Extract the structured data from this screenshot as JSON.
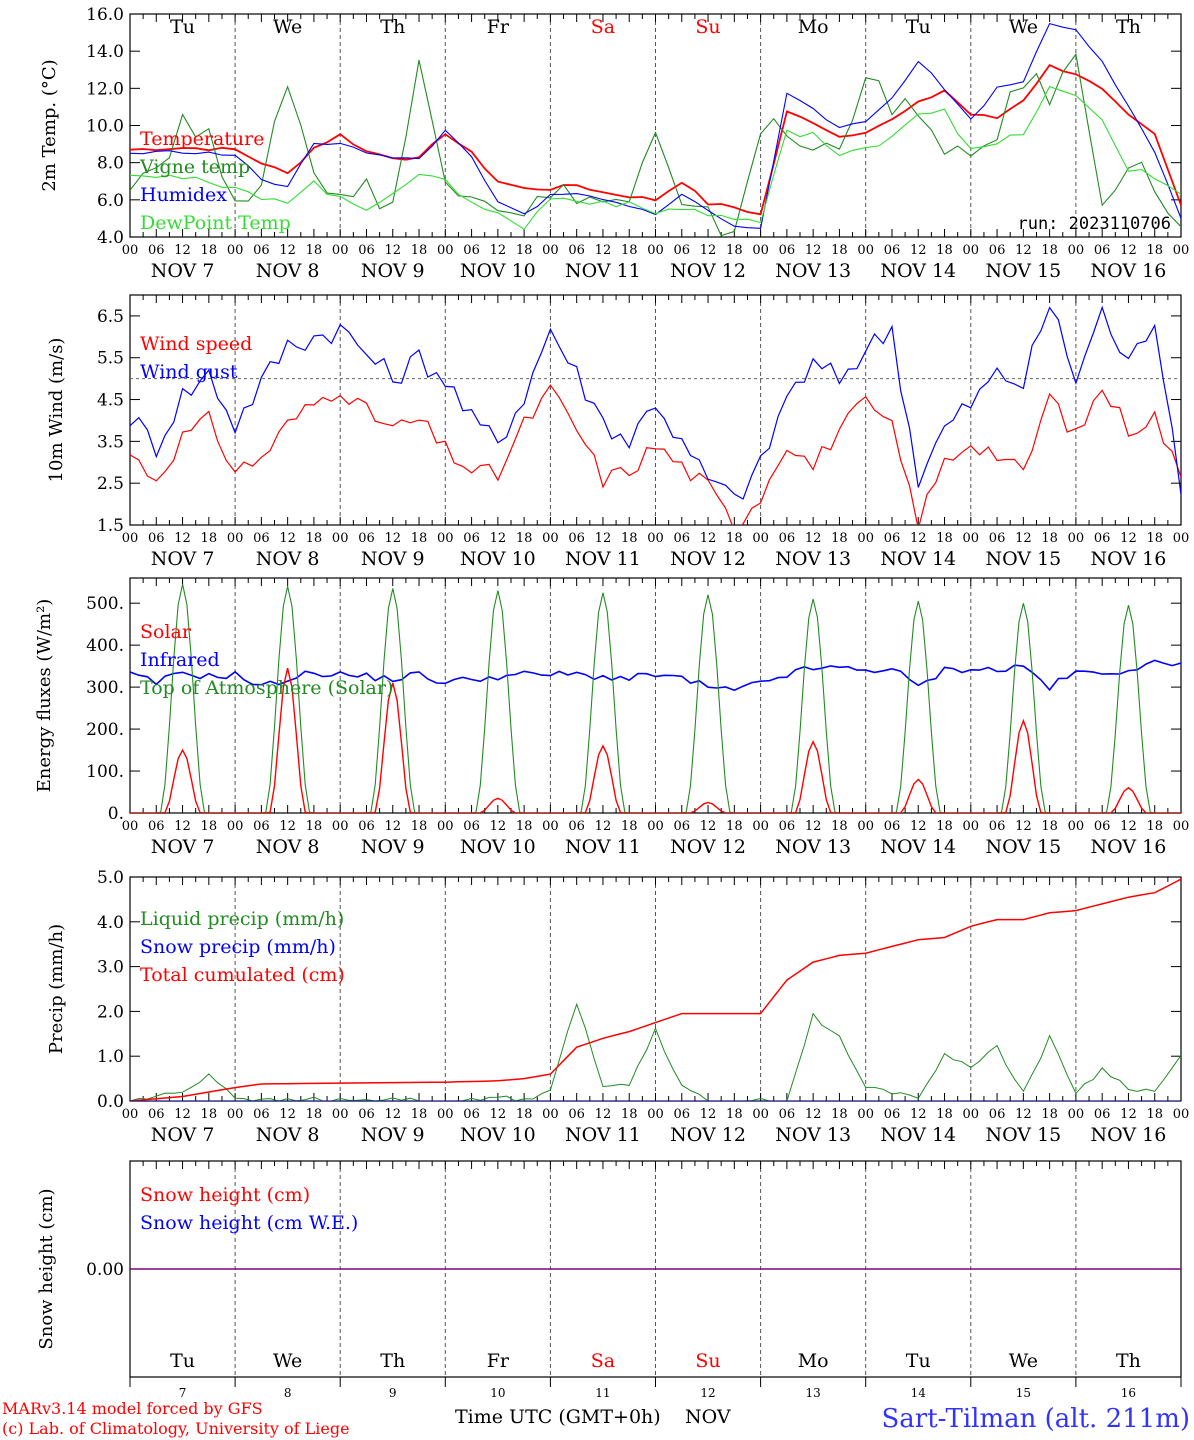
{
  "chart_data": [
    {
      "type": "line",
      "ylabel": "2m Temp. (°C)",
      "ylim": [
        4.0,
        16.0
      ],
      "yticks": [
        "4.0",
        "6.0",
        "8.0",
        "10.0",
        "12.0",
        "14.0",
        "16.0"
      ],
      "run_label": "run: 2023110706",
      "series": [
        {
          "name": "Temperature",
          "color": "#ff0000",
          "x": [
            0,
            12,
            24,
            30,
            36,
            42,
            48,
            54,
            60,
            66,
            72,
            78,
            84,
            90,
            96,
            102,
            108,
            114,
            120,
            126,
            132,
            138,
            144,
            150,
            156,
            162,
            168,
            174,
            180,
            186,
            192,
            198,
            204,
            210,
            216,
            222,
            228,
            234,
            240
          ],
          "values": [
            8.7,
            8.8,
            8.7,
            8.0,
            7.4,
            8.8,
            9.5,
            8.6,
            8.3,
            8.2,
            9.6,
            8.5,
            7.0,
            6.6,
            6.6,
            6.8,
            6.4,
            6.2,
            6.0,
            7.0,
            5.8,
            5.6,
            5.2,
            10.7,
            10.2,
            9.4,
            9.7,
            10.3,
            11.2,
            11.9,
            10.6,
            10.4,
            11.4,
            13.2,
            12.8,
            11.9,
            10.5,
            9.5,
            5.7
          ]
        },
        {
          "name": "Vigne temp",
          "color": "#228b22",
          "x": [
            0,
            6,
            12,
            18,
            24,
            30,
            36,
            42,
            48,
            54,
            60,
            66,
            72,
            78,
            84,
            90,
            96,
            102,
            108,
            114,
            120,
            126,
            132,
            138,
            144,
            150,
            156,
            162,
            168,
            174,
            180,
            186,
            192,
            198,
            204,
            210,
            216,
            222,
            228,
            234,
            240
          ],
          "values": [
            7.3,
            7.8,
            10.2,
            9.1,
            6.7,
            6.2,
            12.7,
            7.3,
            6.4,
            6.6,
            5.9,
            13.1,
            7.1,
            6.9,
            5.9,
            5.6,
            6.0,
            6.5,
            5.8,
            6.0,
            9.3,
            5.3,
            4.9,
            4.4,
            10.0,
            9.5,
            8.5,
            9.2,
            12.9,
            10.5,
            11.2,
            8.0,
            8.2,
            9.8,
            12.4,
            11.8,
            13.4,
            6.4,
            8.0,
            6.8,
            4.5
          ]
        },
        {
          "name": "Humidex",
          "color": "#0000ff",
          "x": [
            0,
            12,
            24,
            30,
            36,
            42,
            48,
            54,
            60,
            66,
            72,
            78,
            84,
            90,
            96,
            102,
            108,
            114,
            120,
            126,
            132,
            138,
            144,
            150,
            156,
            162,
            168,
            174,
            180,
            186,
            192,
            198,
            204,
            210,
            216,
            222,
            228,
            234,
            240
          ],
          "values": [
            8.5,
            8.6,
            8.4,
            7.1,
            6.7,
            9.0,
            9.1,
            8.6,
            8.2,
            8.2,
            9.7,
            8.4,
            5.8,
            5.2,
            6.2,
            6.3,
            6.0,
            5.6,
            5.3,
            6.3,
            5.4,
            4.6,
            4.4,
            11.8,
            11.0,
            9.8,
            10.2,
            11.5,
            13.5,
            12.0,
            10.3,
            12.0,
            12.4,
            15.5,
            15.2,
            13.5,
            11.0,
            8.5,
            5.0
          ]
        },
        {
          "name": "DewPoint Temp",
          "color": "#33dd33",
          "x": [
            0,
            12,
            24,
            30,
            36,
            42,
            48,
            54,
            60,
            66,
            72,
            78,
            84,
            90,
            96,
            102,
            108,
            114,
            120,
            126,
            132,
            138,
            144,
            150,
            156,
            162,
            168,
            174,
            180,
            186,
            192,
            198,
            204,
            210,
            216,
            222,
            228,
            234,
            240
          ],
          "values": [
            7.5,
            7.2,
            6.5,
            6.2,
            6.0,
            6.9,
            6.0,
            5.5,
            6.5,
            7.4,
            6.9,
            6.0,
            5.2,
            4.5,
            6.1,
            6.0,
            5.9,
            5.7,
            5.3,
            5.6,
            5.2,
            5.0,
            4.8,
            9.6,
            9.6,
            8.3,
            8.7,
            9.5,
            10.7,
            10.9,
            8.6,
            9.0,
            9.6,
            12.0,
            11.5,
            10.3,
            7.7,
            7.2,
            6.3
          ]
        }
      ]
    },
    {
      "type": "line",
      "ylabel": "10m Wind (m/s)",
      "ylim": [
        1.5,
        7.0
      ],
      "yticks": [
        "1.5",
        "2.5",
        "3.5",
        "4.5",
        "5.5",
        "6.5"
      ],
      "reference_line": 5.0,
      "series": [
        {
          "name": "Wind speed",
          "color": "#ff0000",
          "x": [
            0,
            6,
            12,
            18,
            24,
            30,
            36,
            42,
            48,
            54,
            60,
            66,
            72,
            78,
            84,
            90,
            96,
            102,
            108,
            114,
            120,
            126,
            132,
            138,
            144,
            150,
            156,
            162,
            168,
            174,
            180,
            186,
            192,
            198,
            204,
            210,
            216,
            222,
            228,
            234,
            240
          ],
          "values": [
            3.2,
            2.6,
            3.6,
            4.0,
            2.8,
            3.1,
            3.9,
            4.4,
            4.8,
            4.2,
            3.8,
            4.0,
            3.3,
            2.8,
            2.7,
            3.9,
            4.7,
            3.8,
            2.6,
            2.8,
            3.4,
            2.9,
            2.4,
            1.5,
            2.2,
            3.5,
            2.9,
            3.8,
            4.4,
            3.8,
            1.6,
            3.0,
            3.5,
            3.2,
            2.7,
            4.6,
            3.6,
            4.8,
            3.8,
            4.1,
            2.6
          ]
        },
        {
          "name": "Wind gust",
          "color": "#0000ff",
          "x": [
            0,
            6,
            12,
            18,
            24,
            30,
            36,
            42,
            48,
            54,
            60,
            66,
            72,
            78,
            84,
            90,
            96,
            102,
            108,
            114,
            120,
            126,
            132,
            138,
            144,
            150,
            156,
            162,
            168,
            174,
            180,
            186,
            192,
            198,
            204,
            210,
            216,
            222,
            228,
            234,
            240
          ],
          "values": [
            4.1,
            3.4,
            4.6,
            5.1,
            3.9,
            4.9,
            5.8,
            6.0,
            6.2,
            5.6,
            5.0,
            5.5,
            5.0,
            4.0,
            3.5,
            4.6,
            6.2,
            5.1,
            4.0,
            3.5,
            4.5,
            3.4,
            2.6,
            2.1,
            2.9,
            4.6,
            5.3,
            5.0,
            5.7,
            6.2,
            2.6,
            3.8,
            4.4,
            5.1,
            4.9,
            6.8,
            5.0,
            6.6,
            5.3,
            6.5,
            2.5
          ]
        }
      ]
    },
    {
      "type": "line",
      "ylabel": "Energy fluxes (W/m²)",
      "ylim": [
        0,
        560
      ],
      "yticks": [
        "0.",
        "100.",
        "200.",
        "300.",
        "400.",
        "500."
      ],
      "series": [
        {
          "name": "Solar",
          "color": "#ff0000",
          "peaks": [
            150,
            345,
            310,
            35,
            160,
            25,
            170,
            80,
            220,
            60
          ]
        },
        {
          "name": "Infrared",
          "color": "#0000ff",
          "x": [
            0,
            6,
            12,
            18,
            24,
            30,
            36,
            42,
            48,
            54,
            60,
            66,
            72,
            78,
            84,
            90,
            96,
            102,
            108,
            114,
            120,
            126,
            132,
            138,
            144,
            150,
            156,
            162,
            168,
            174,
            180,
            186,
            192,
            198,
            204,
            210,
            216,
            222,
            228,
            234,
            240
          ],
          "values": [
            330,
            310,
            335,
            325,
            330,
            300,
            320,
            335,
            330,
            325,
            320,
            330,
            310,
            320,
            325,
            330,
            330,
            330,
            325,
            320,
            330,
            320,
            300,
            290,
            310,
            330,
            345,
            345,
            340,
            345,
            300,
            340,
            345,
            340,
            350,
            300,
            335,
            330,
            345,
            355,
            360
          ]
        },
        {
          "name": "Top of Atmosphere (Solar)",
          "color": "#228b22",
          "peaks": [
            545,
            540,
            535,
            530,
            525,
            520,
            510,
            505,
            500,
            495
          ]
        }
      ]
    },
    {
      "type": "line",
      "ylabel": "Precip (mm/h)",
      "ylim": [
        0,
        5.0
      ],
      "yticks": [
        "0.0",
        "1.0",
        "2.0",
        "3.0",
        "4.0",
        "5.0"
      ],
      "series": [
        {
          "name": "Liquid precip (mm/h)",
          "color": "#228b22",
          "x": [
            0,
            6,
            12,
            18,
            24,
            30,
            36,
            42,
            48,
            54,
            60,
            66,
            72,
            78,
            84,
            90,
            96,
            102,
            108,
            114,
            120,
            126,
            132,
            138,
            144,
            150,
            156,
            162,
            168,
            174,
            180,
            186,
            192,
            198,
            204,
            210,
            216,
            222,
            228,
            234,
            240
          ],
          "values": [
            0,
            0.1,
            0.2,
            0.6,
            0.1,
            0,
            0,
            0.05,
            0,
            0,
            0.05,
            0,
            0,
            0,
            0.1,
            0,
            0.3,
            2.2,
            0.3,
            0.4,
            1.6,
            0.3,
            0,
            0,
            0,
            0,
            1.9,
            1.4,
            0.3,
            0.2,
            0.1,
            1.0,
            0.8,
            1.2,
            0.2,
            1.4,
            0.2,
            0.7,
            0.3,
            0.2,
            1.0
          ]
        },
        {
          "name": "Snow precip (mm/h)",
          "color": "#0000ff",
          "values": [
            0
          ]
        },
        {
          "name": "Total cumulated (cm)",
          "color": "#ff0000",
          "x": [
            0,
            12,
            18,
            24,
            30,
            48,
            72,
            84,
            90,
            96,
            102,
            108,
            114,
            120,
            126,
            138,
            144,
            150,
            156,
            162,
            168,
            174,
            180,
            186,
            192,
            198,
            204,
            210,
            216,
            222,
            228,
            234,
            240
          ],
          "values": [
            0.0,
            0.1,
            0.2,
            0.3,
            0.38,
            0.4,
            0.42,
            0.45,
            0.5,
            0.6,
            1.2,
            1.4,
            1.55,
            1.75,
            1.95,
            1.95,
            1.95,
            2.7,
            3.1,
            3.25,
            3.3,
            3.45,
            3.6,
            3.65,
            3.9,
            4.05,
            4.05,
            4.2,
            4.25,
            4.4,
            4.55,
            4.65,
            4.95
          ]
        }
      ]
    },
    {
      "type": "line",
      "ylabel": "Snow height (cm)",
      "yticks": [
        "0.00"
      ],
      "series": [
        {
          "name": "Snow height (cm)",
          "color": "#ff0000",
          "values": [
            0
          ]
        },
        {
          "name": "Snow height (cm W.E.)",
          "color": "#0000ff",
          "values": [
            0
          ]
        }
      ]
    }
  ],
  "hour_ticks": [
    "00",
    "06",
    "12",
    "18"
  ],
  "last_hour_tick": "00",
  "date_labels": [
    "NOV  7",
    "NOV  8",
    "NOV  9",
    "NOV 10",
    "NOV 11",
    "NOV 12",
    "NOV 13",
    "NOV 14",
    "NOV 15",
    "NOV 16"
  ],
  "day_names": [
    {
      "name": "Tu",
      "color": "#000000"
    },
    {
      "name": "We",
      "color": "#000000"
    },
    {
      "name": "Th",
      "color": "#000000"
    },
    {
      "name": "Fr",
      "color": "#000000"
    },
    {
      "name": "Sa",
      "color": "#ff0000"
    },
    {
      "name": "Su",
      "color": "#ff0000"
    },
    {
      "name": "Mo",
      "color": "#000000"
    },
    {
      "name": "Tu",
      "color": "#000000"
    },
    {
      "name": "We",
      "color": "#000000"
    },
    {
      "name": "Th",
      "color": "#000000"
    }
  ],
  "day_numbers": [
    "7",
    "8",
    "9",
    "10",
    "11",
    "12",
    "13",
    "14",
    "15",
    "16"
  ],
  "xlabel": "Time UTC (GMT+0h)",
  "month_label": "NOV",
  "credits": [
    "MARv3.14 model forced by GFS",
    "(c) Lab. of Climatology, University of Liege"
  ],
  "station": "Sart-Tilman (alt. 211m)",
  "colors": {
    "snow_line": "#800080",
    "credit": "#ff0000",
    "station": "#3333ff"
  }
}
